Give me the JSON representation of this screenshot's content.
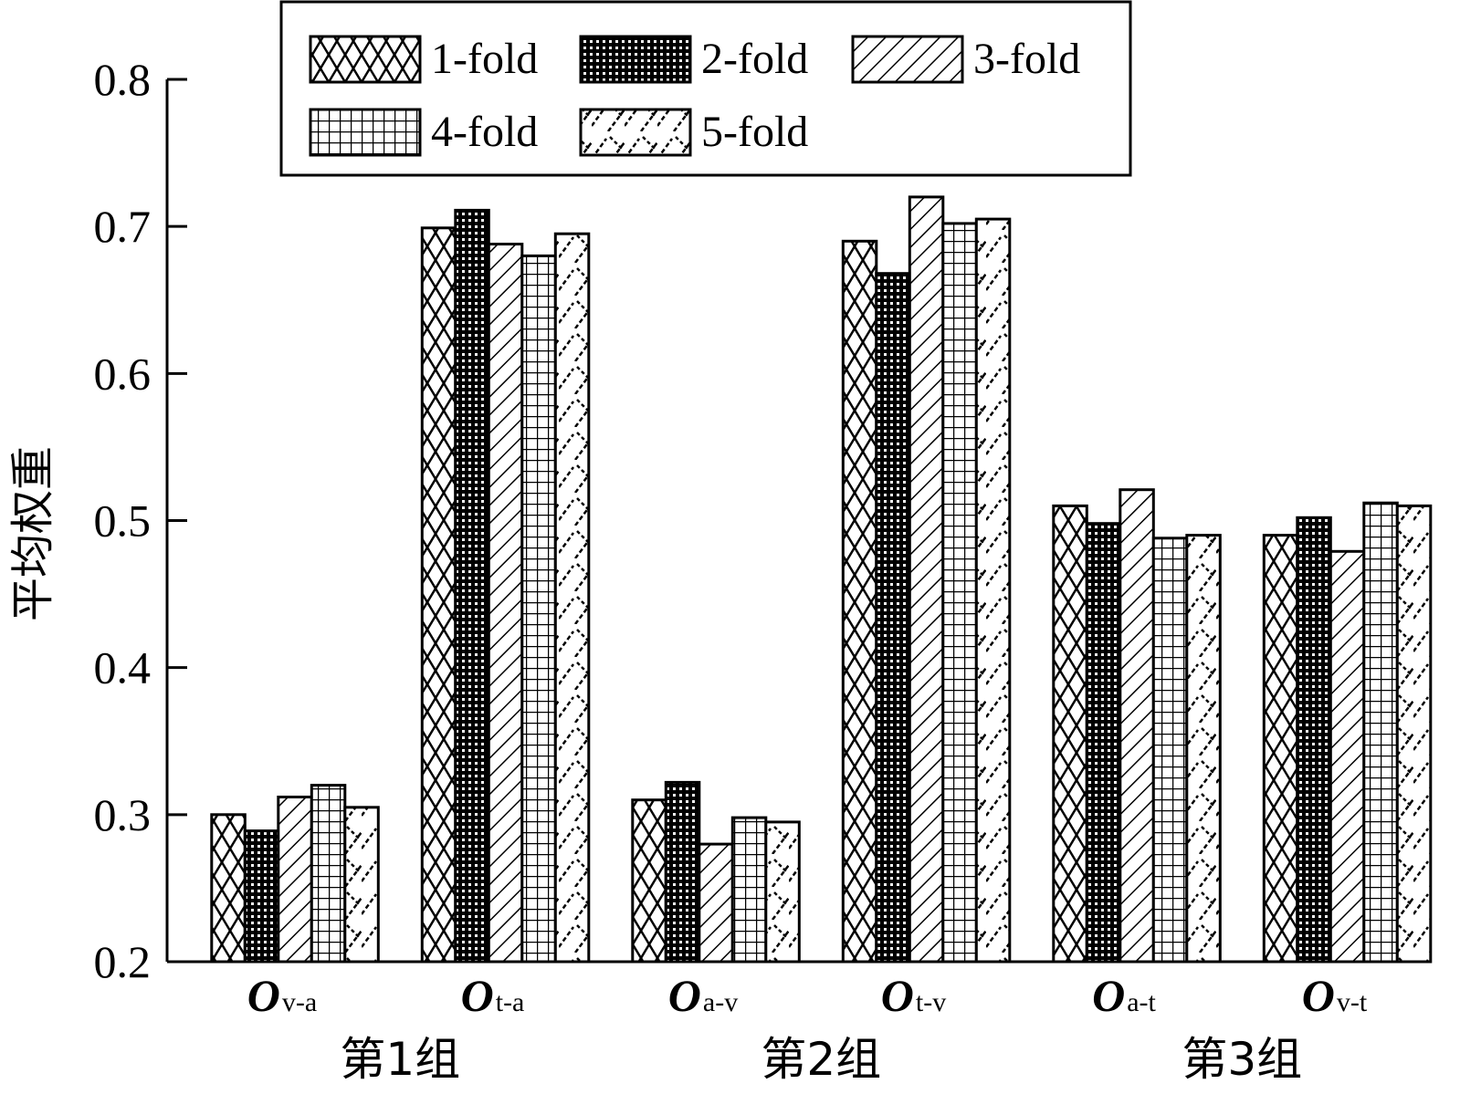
{
  "chart_data": {
    "type": "bar",
    "ylabel": "平均权重",
    "ylim": [
      0.2,
      0.8
    ],
    "yticks": [
      "0.2",
      "0.3",
      "0.4",
      "0.5",
      "0.6",
      "0.7",
      "0.8"
    ],
    "grid": false,
    "legend_position": "top",
    "categories": [
      {
        "main": "O",
        "sub": "v-a"
      },
      {
        "main": "O",
        "sub": "t-a"
      },
      {
        "main": "O",
        "sub": "a-v"
      },
      {
        "main": "O",
        "sub": "t-v"
      },
      {
        "main": "O",
        "sub": "a-t"
      },
      {
        "main": "O",
        "sub": "v-t"
      }
    ],
    "groups": [
      {
        "label": "第1组",
        "categories": [
          0,
          1
        ]
      },
      {
        "label": "第2组",
        "categories": [
          2,
          3
        ]
      },
      {
        "label": "第3组",
        "categories": [
          4,
          5
        ]
      }
    ],
    "series": [
      {
        "name": "1-fold",
        "pattern": "crosshatch",
        "values": [
          0.3,
          0.699,
          0.31,
          0.69,
          0.51,
          0.49
        ]
      },
      {
        "name": "2-fold",
        "pattern": "dense-grid",
        "values": [
          0.289,
          0.711,
          0.322,
          0.668,
          0.498,
          0.502
        ]
      },
      {
        "name": "3-fold",
        "pattern": "diagonal",
        "values": [
          0.312,
          0.688,
          0.28,
          0.72,
          0.521,
          0.479
        ]
      },
      {
        "name": "4-fold",
        "pattern": "grid",
        "values": [
          0.32,
          0.68,
          0.298,
          0.702,
          0.488,
          0.512
        ]
      },
      {
        "name": "5-fold",
        "pattern": "zigzag",
        "values": [
          0.305,
          0.695,
          0.295,
          0.705,
          0.49,
          0.51
        ]
      }
    ]
  }
}
